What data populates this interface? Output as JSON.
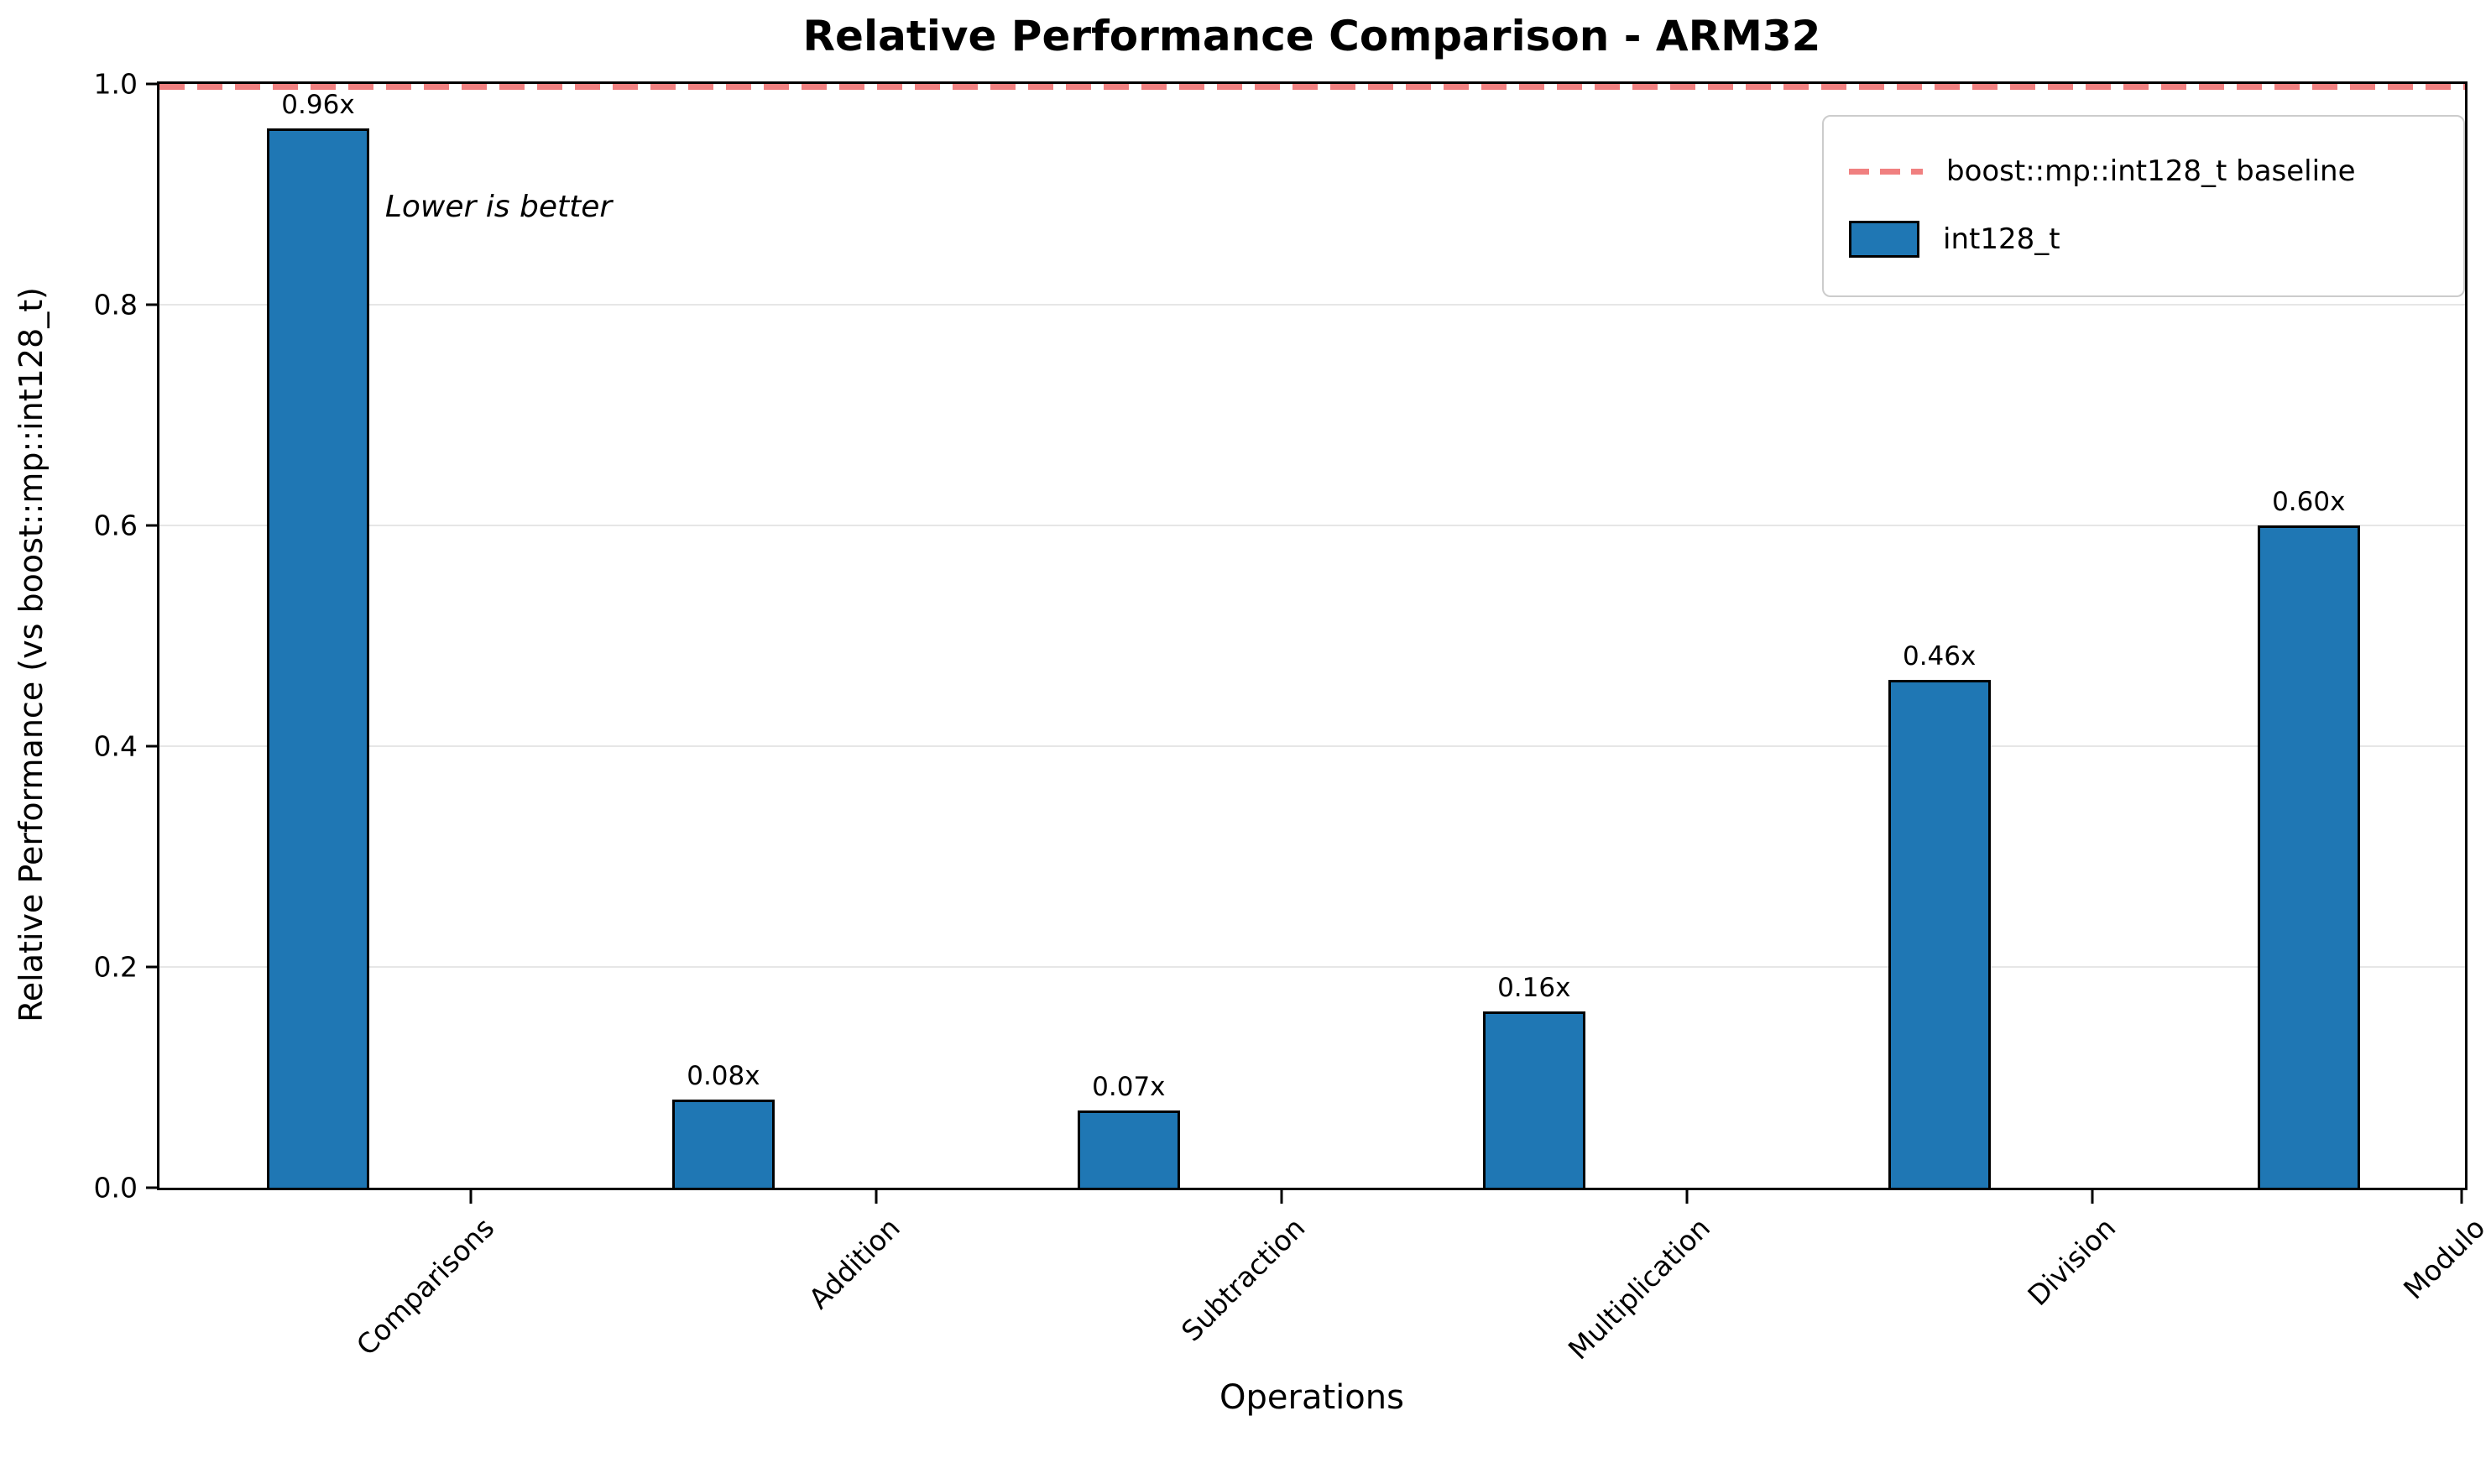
{
  "title": "Relative Performance Comparison - ARM32",
  "annotation": "Lower is better",
  "chart_data": {
    "type": "bar",
    "title": "Relative Performance Comparison - ARM32",
    "xlabel": "Operations",
    "ylabel": "Relative Performance (vs boost::mp::int128_t)",
    "categories": [
      "Comparisons",
      "Addition",
      "Subtraction",
      "Multiplication",
      "Division",
      "Modulo"
    ],
    "values": [
      0.96,
      0.08,
      0.07,
      0.16,
      0.46,
      0.6
    ],
    "bar_labels": [
      "0.96x",
      "0.08x",
      "0.07x",
      "0.16x",
      "0.46x",
      "0.60x"
    ],
    "series_name": "int128_t",
    "bar_color": "#1f77b4",
    "bar_edge_color": "#000000",
    "baseline": {
      "value": 1.0,
      "label": "boost::mp::int128_t baseline",
      "color": "#f08080",
      "style": "dashed"
    },
    "ylim": [
      0.0,
      1.0
    ],
    "yticks": [
      0.0,
      0.2,
      0.4,
      0.6,
      0.8,
      1.0
    ],
    "grid": "y",
    "grid_color": "#e6e6e6",
    "legend": {
      "position": "upper right",
      "items": [
        {
          "type": "dashed-line",
          "label": "boost::mp::int128_t baseline"
        },
        {
          "type": "bar",
          "label": "int128_t"
        }
      ]
    }
  }
}
